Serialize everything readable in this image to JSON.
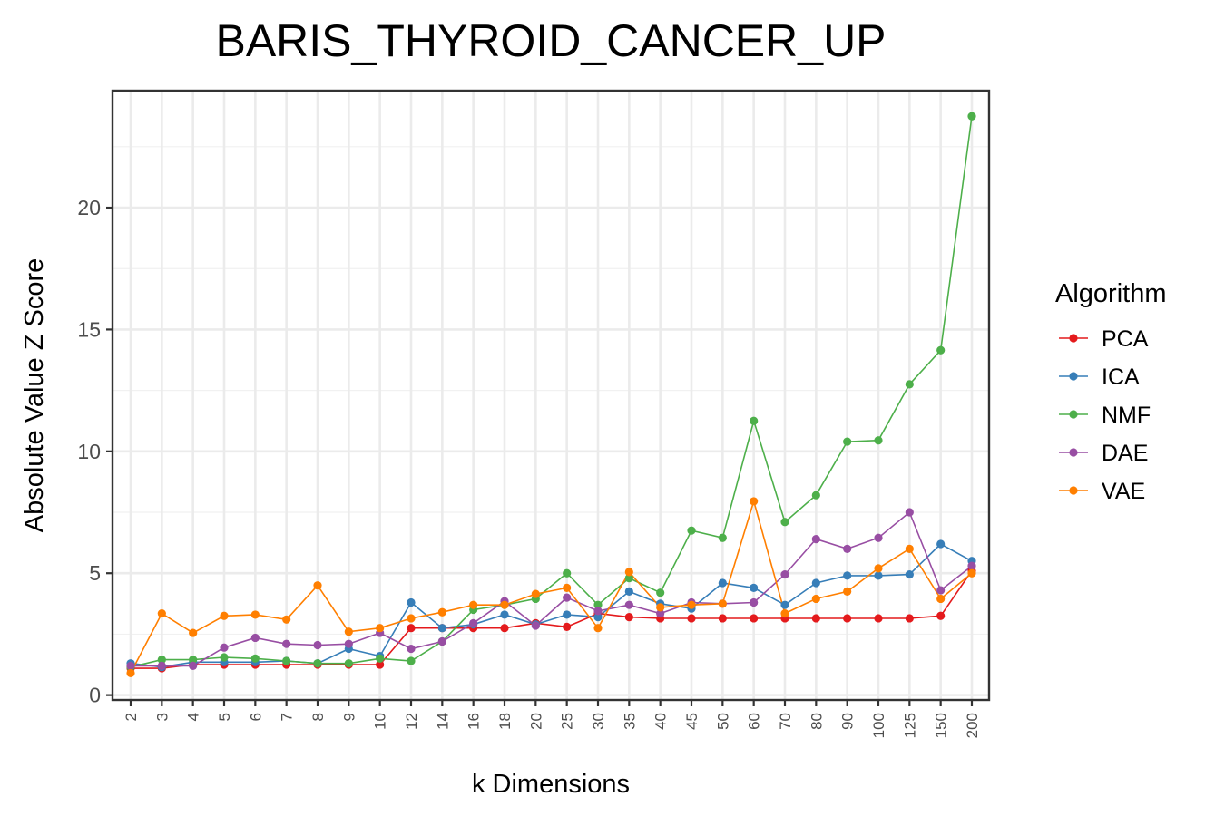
{
  "chart_data": {
    "type": "line",
    "title": "BARIS_THYROID_CANCER_UP",
    "xlabel": "k Dimensions",
    "ylabel": "Absolute Value Z Score",
    "categories": [
      "2",
      "3",
      "4",
      "5",
      "6",
      "7",
      "8",
      "9",
      "10",
      "12",
      "14",
      "16",
      "18",
      "20",
      "25",
      "30",
      "35",
      "40",
      "45",
      "50",
      "60",
      "70",
      "80",
      "90",
      "100",
      "125",
      "150",
      "200"
    ],
    "ylim": [
      -0.2,
      24.8
    ],
    "yticks": [
      0,
      5,
      10,
      15,
      20
    ],
    "ytick_labels": [
      "0",
      "5",
      "10",
      "15",
      "20"
    ],
    "grid": true,
    "legend": {
      "title": "Algorithm",
      "position": "right"
    },
    "series": [
      {
        "name": "PCA",
        "color": "#e41a1c",
        "values": [
          1.1,
          1.1,
          1.25,
          1.25,
          1.25,
          1.25,
          1.25,
          1.25,
          1.25,
          2.75,
          2.75,
          2.75,
          2.75,
          2.95,
          2.8,
          3.35,
          3.2,
          3.15,
          3.15,
          3.15,
          3.15,
          3.15,
          3.15,
          3.15,
          3.15,
          3.15,
          3.25,
          5.1
        ]
      },
      {
        "name": "ICA",
        "color": "#377eb8",
        "values": [
          1.3,
          1.15,
          1.35,
          1.35,
          1.35,
          1.4,
          1.3,
          1.9,
          1.6,
          3.8,
          2.75,
          2.9,
          3.3,
          2.9,
          3.3,
          3.2,
          4.25,
          3.75,
          3.55,
          4.6,
          4.4,
          3.7,
          4.6,
          4.9,
          4.9,
          4.95,
          6.2,
          5.5
        ]
      },
      {
        "name": "NMF",
        "color": "#4daf4a",
        "values": [
          1.15,
          1.45,
          1.45,
          1.55,
          1.5,
          1.4,
          1.3,
          1.3,
          1.5,
          1.4,
          2.2,
          3.5,
          3.7,
          3.95,
          5.0,
          3.7,
          4.8,
          4.2,
          6.75,
          6.45,
          11.25,
          7.1,
          8.2,
          10.4,
          10.45,
          12.75,
          14.15,
          23.75
        ]
      },
      {
        "name": "DAE",
        "color": "#984ea3",
        "values": [
          1.2,
          1.2,
          1.2,
          1.95,
          2.35,
          2.1,
          2.05,
          2.1,
          2.55,
          1.9,
          2.2,
          2.95,
          3.85,
          2.85,
          4.0,
          3.45,
          3.7,
          3.35,
          3.8,
          3.75,
          3.8,
          4.95,
          6.4,
          6.0,
          6.45,
          7.5,
          4.3,
          5.3
        ]
      },
      {
        "name": "VAE",
        "color": "#ff7f00",
        "values": [
          0.9,
          3.35,
          2.55,
          3.25,
          3.3,
          3.1,
          4.5,
          2.6,
          2.75,
          3.15,
          3.4,
          3.7,
          3.7,
          4.15,
          4.4,
          2.75,
          5.05,
          3.6,
          3.7,
          3.75,
          7.95,
          3.35,
          3.95,
          4.25,
          5.2,
          6.0,
          3.95,
          5.0
        ]
      }
    ]
  }
}
